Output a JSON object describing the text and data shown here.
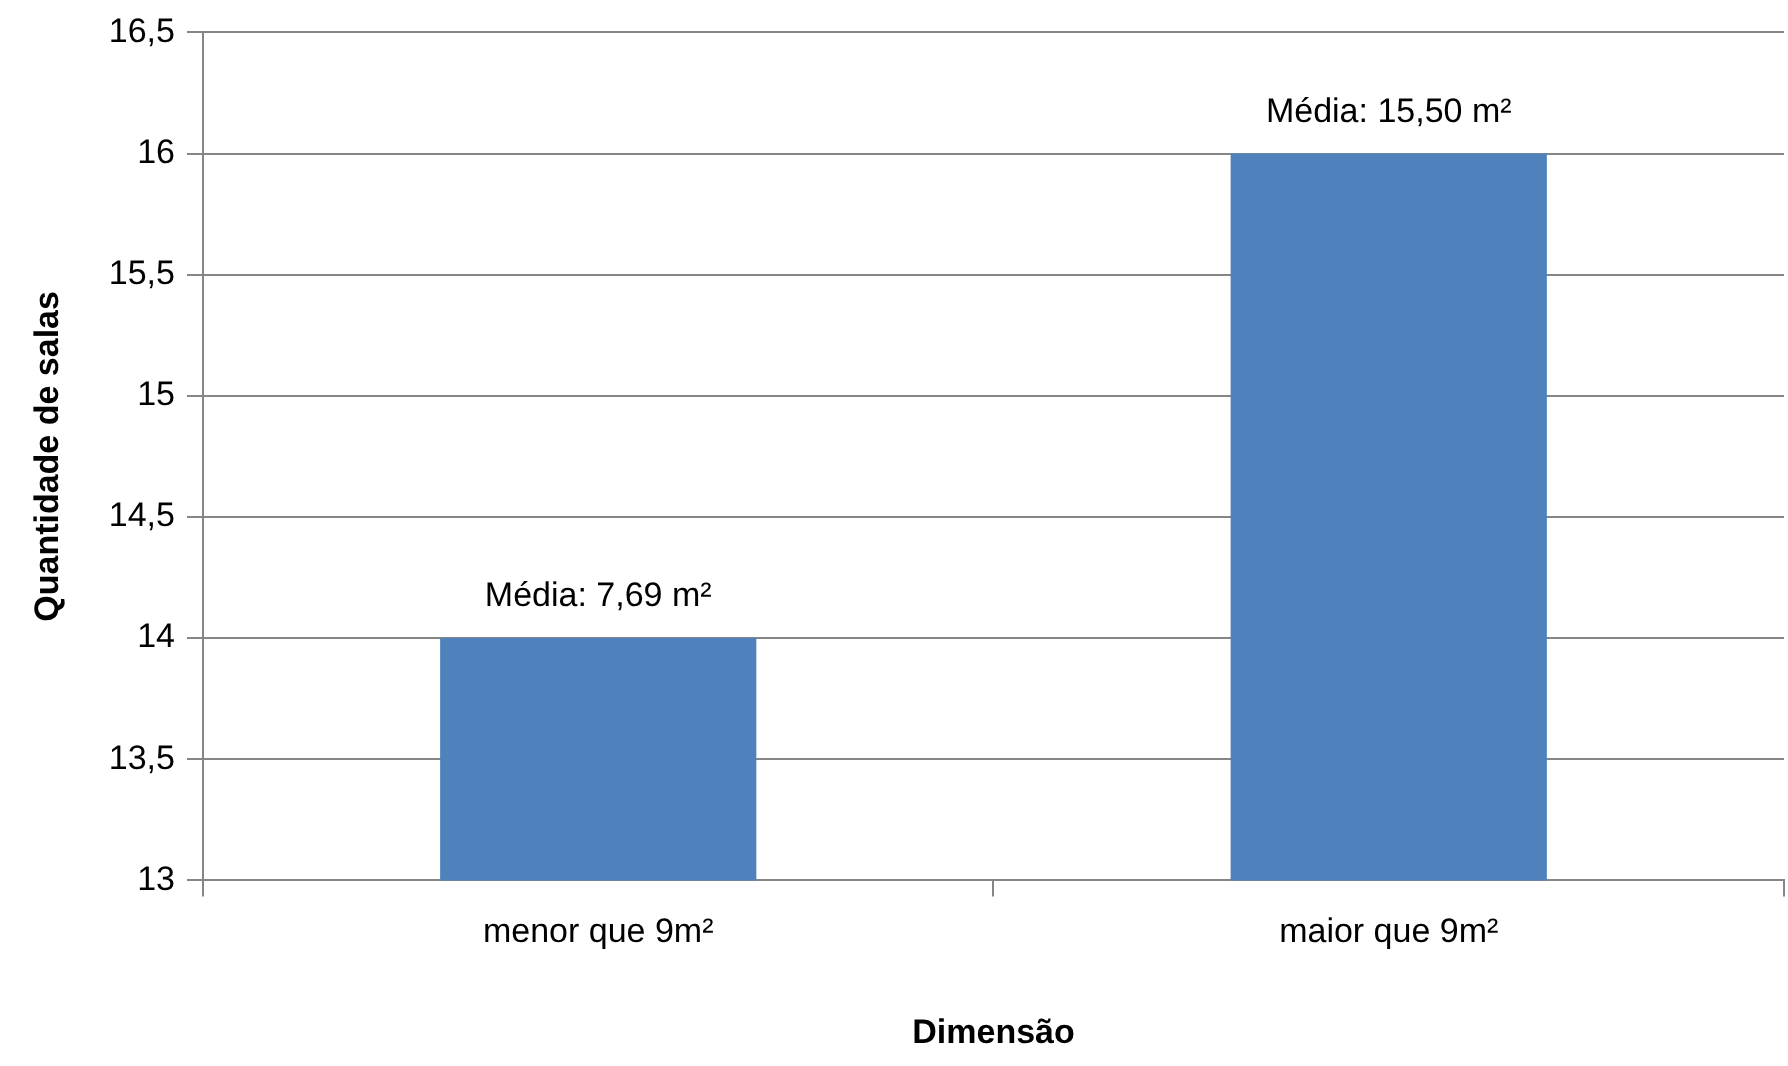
{
  "chart_data": {
    "type": "bar",
    "xlabel": "Dimensão",
    "ylabel": "Quantidade de salas",
    "categories": [
      "menor que 9m²",
      "maior que 9m²"
    ],
    "values": [
      14,
      16
    ],
    "color": "#4f81bd",
    "ylim": [
      13,
      16.5
    ],
    "yticks": [
      13,
      {
        "value": 13.5,
        "label": "13,5"
      },
      14,
      {
        "value": 14.5,
        "label": "14,5"
      },
      15,
      {
        "value": 15.5,
        "label": "15,5"
      },
      16,
      {
        "value": 16.5,
        "label": "16,5"
      }
    ],
    "grid": "y",
    "legend": false,
    "annotations": [
      {
        "text": "Média: 7,69 m²",
        "x": "menor que 9m²",
        "y": 14
      },
      {
        "text": "Média: 15,50 m²",
        "x": "maior que 9m²",
        "y": 16
      }
    ]
  }
}
